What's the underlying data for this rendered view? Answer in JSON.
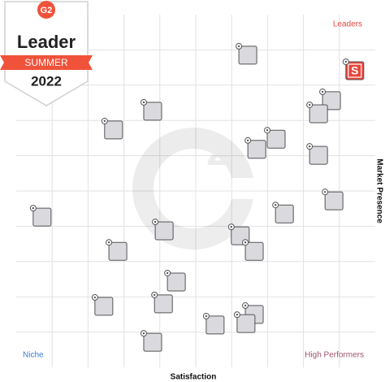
{
  "badge": {
    "title": "Leader",
    "season": "SUMMER",
    "year": "2022"
  },
  "chart_data": {
    "type": "scatter",
    "xlabel": "Satisfaction",
    "ylabel": "Market Presence",
    "quadrants": {
      "top_right": "Leaders",
      "bottom_left": "Niche",
      "bottom_right": "High Performers"
    },
    "xlim": [
      0,
      100
    ],
    "ylim": [
      0,
      100
    ],
    "xgrid": [
      10,
      20,
      30,
      40,
      50,
      60,
      70,
      80,
      90
    ],
    "ygrid": [
      10,
      20,
      30,
      40,
      50,
      60,
      70,
      80,
      90
    ],
    "series": [
      {
        "color": "#d9d9de",
        "x": [
          64.5,
          87.8,
          84.2,
          38.0,
          27.1,
          72.4,
          67.0,
          84.2,
          7.2,
          74.7,
          88.5,
          41.2,
          62.4,
          66.3,
          28.3,
          44.6,
          24.4,
          41.0,
          66.3,
          55.4,
          64.0,
          38.0
        ],
        "y": [
          88.5,
          75.6,
          71.9,
          72.6,
          67.3,
          64.7,
          61.8,
          60.1,
          42.6,
          43.5,
          47.2,
          38.7,
          37.3,
          32.9,
          32.9,
          24.2,
          17.3,
          18.0,
          15.0,
          12.0,
          12.4,
          7.1
        ]
      },
      {
        "color": "#e8453c",
        "label": "S",
        "x": [
          94.3
        ],
        "y": [
          84.1
        ]
      }
    ]
  }
}
